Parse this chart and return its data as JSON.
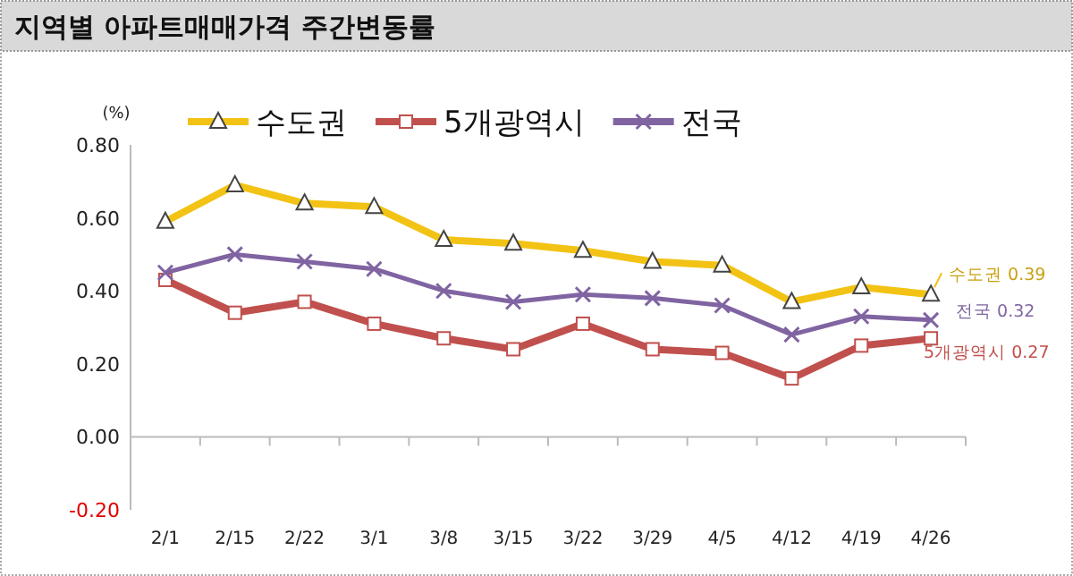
{
  "chart_data": {
    "type": "line",
    "title": "지역별 아파트매매가격 주간변동률",
    "ylabel": "(%)",
    "categories": [
      "2/1",
      "2/15",
      "2/22",
      "3/1",
      "3/8",
      "3/15",
      "3/22",
      "3/29",
      "4/5",
      "4/12",
      "4/19",
      "4/26"
    ],
    "series": [
      {
        "name": "수도권",
        "color": "#f2c314",
        "marker": "triangle",
        "values": [
          0.59,
          0.69,
          0.64,
          0.63,
          0.54,
          0.53,
          0.51,
          0.48,
          0.47,
          0.37,
          0.41,
          0.39
        ]
      },
      {
        "name": "5개광역시",
        "color": "#c0504d",
        "marker": "square",
        "values": [
          0.43,
          0.34,
          0.37,
          0.31,
          0.27,
          0.24,
          0.31,
          0.24,
          0.23,
          0.16,
          0.25,
          0.27
        ]
      },
      {
        "name": "전국",
        "color": "#8064a2",
        "marker": "cross",
        "values": [
          0.45,
          0.5,
          0.48,
          0.46,
          0.4,
          0.37,
          0.39,
          0.38,
          0.36,
          0.28,
          0.33,
          0.32
        ]
      }
    ],
    "ylim": [
      -0.2,
      0.8
    ],
    "yticks": [
      {
        "value": -0.2,
        "label": "-0.20"
      },
      {
        "value": 0,
        "label": "0.00"
      },
      {
        "value": 0.2,
        "label": "0.20"
      },
      {
        "value": 0.4,
        "label": "0.40"
      },
      {
        "value": 0.6,
        "label": "0.60"
      },
      {
        "value": 0.8,
        "label": "0.80"
      }
    ],
    "ref_lines": [
      {
        "axis": "y",
        "value": 0,
        "color": "#bbbbbb"
      }
    ],
    "legend": "top",
    "annotations": [
      {
        "text": "수도권 0.39",
        "x": "4/26",
        "y": 0.39
      },
      {
        "text": "전국 0.32",
        "x": "4/26",
        "y": 0.32
      },
      {
        "text": "5개광역시 0.27",
        "x": "4/26",
        "y": 0.27
      }
    ]
  }
}
